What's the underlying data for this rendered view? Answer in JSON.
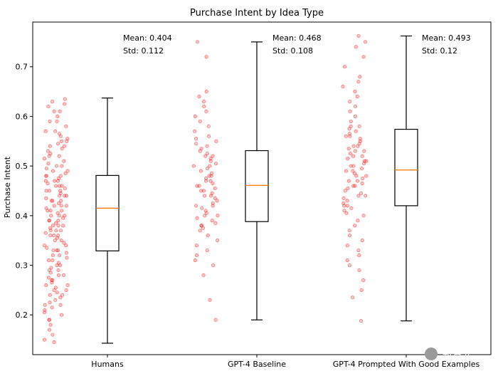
{
  "chart_data": {
    "type": "box",
    "title": "Purchase Intent by Idea Type",
    "xlabel": "",
    "ylabel": "Purchase Intent",
    "ylim": [
      0.12,
      0.79
    ],
    "yticks": [
      0.2,
      0.3,
      0.4,
      0.5,
      0.6,
      0.7
    ],
    "ytick_labels": [
      "0.2",
      "0.3",
      "0.4",
      "0.5",
      "0.6",
      "0.7"
    ],
    "grid": false,
    "categories": [
      "Humans",
      "GPT-4 Baseline",
      "GPT-4 Prompted With Good Examples"
    ],
    "series": [
      {
        "name": "Humans",
        "whisker_low": 0.143,
        "q1": 0.329,
        "median": 0.415,
        "q3": 0.481,
        "whisker_high": 0.637,
        "mean_label": "Mean: 0.404",
        "std_label": "Std: 0.112",
        "points": [
          0.145,
          0.15,
          0.16,
          0.17,
          0.18,
          0.19,
          0.2,
          0.205,
          0.21,
          0.215,
          0.22,
          0.225,
          0.23,
          0.235,
          0.24,
          0.245,
          0.25,
          0.255,
          0.26,
          0.265,
          0.27,
          0.275,
          0.28,
          0.285,
          0.29,
          0.295,
          0.3,
          0.305,
          0.31,
          0.315,
          0.32,
          0.325,
          0.33,
          0.335,
          0.34,
          0.345,
          0.35,
          0.355,
          0.36,
          0.365,
          0.37,
          0.375,
          0.38,
          0.385,
          0.39,
          0.395,
          0.4,
          0.405,
          0.41,
          0.415,
          0.42,
          0.425,
          0.43,
          0.435,
          0.44,
          0.445,
          0.45,
          0.455,
          0.46,
          0.465,
          0.47,
          0.475,
          0.48,
          0.485,
          0.49,
          0.495,
          0.5,
          0.505,
          0.51,
          0.515,
          0.52,
          0.525,
          0.53,
          0.535,
          0.54,
          0.545,
          0.55,
          0.555,
          0.56,
          0.565,
          0.57,
          0.58,
          0.59,
          0.6,
          0.61,
          0.62,
          0.625,
          0.63,
          0.635,
          0.31,
          0.33,
          0.35,
          0.37,
          0.39,
          0.41,
          0.43,
          0.45,
          0.47,
          0.49,
          0.4,
          0.42,
          0.44,
          0.46,
          0.48,
          0.38,
          0.36,
          0.34,
          0.32,
          0.3,
          0.28,
          0.26,
          0.24,
          0.41,
          0.43,
          0.45,
          0.47,
          0.39,
          0.37,
          0.5,
          0.52,
          0.54,
          0.42,
          0.44,
          0.46,
          0.48,
          0.4,
          0.38,
          0.36,
          0.33,
          0.29,
          0.27,
          0.25,
          0.22,
          0.19,
          0.55,
          0.57,
          0.59,
          0.61
        ]
      },
      {
        "name": "GPT-4 Baseline",
        "whisker_low": 0.19,
        "q1": 0.388,
        "median": 0.461,
        "q3": 0.531,
        "whisker_high": 0.75,
        "mean_label": "Mean: 0.468",
        "std_label": "Std: 0.108",
        "points": [
          0.19,
          0.23,
          0.28,
          0.3,
          0.31,
          0.32,
          0.33,
          0.34,
          0.35,
          0.36,
          0.37,
          0.375,
          0.38,
          0.385,
          0.39,
          0.395,
          0.4,
          0.405,
          0.41,
          0.415,
          0.42,
          0.425,
          0.43,
          0.435,
          0.44,
          0.445,
          0.45,
          0.455,
          0.46,
          0.465,
          0.47,
          0.475,
          0.48,
          0.485,
          0.49,
          0.495,
          0.5,
          0.505,
          0.51,
          0.515,
          0.52,
          0.525,
          0.53,
          0.535,
          0.54,
          0.545,
          0.55,
          0.555,
          0.56,
          0.57,
          0.58,
          0.59,
          0.6,
          0.61,
          0.62,
          0.63,
          0.64,
          0.65,
          0.72,
          0.75,
          0.4,
          0.42,
          0.44,
          0.46,
          0.48,
          0.38,
          0.5,
          0.52,
          0.45,
          0.47
        ]
      },
      {
        "name": "GPT-4 Prompted With Good Examples",
        "whisker_low": 0.188,
        "q1": 0.42,
        "median": 0.492,
        "q3": 0.574,
        "whisker_high": 0.762,
        "mean_label": "Mean: 0.493",
        "std_label": "Std: 0.12",
        "points": [
          0.188,
          0.235,
          0.25,
          0.27,
          0.29,
          0.3,
          0.31,
          0.32,
          0.33,
          0.34,
          0.35,
          0.36,
          0.37,
          0.38,
          0.39,
          0.4,
          0.405,
          0.41,
          0.415,
          0.42,
          0.425,
          0.43,
          0.435,
          0.44,
          0.445,
          0.45,
          0.455,
          0.46,
          0.465,
          0.47,
          0.475,
          0.48,
          0.485,
          0.49,
          0.495,
          0.5,
          0.505,
          0.51,
          0.515,
          0.52,
          0.525,
          0.53,
          0.535,
          0.54,
          0.545,
          0.55,
          0.555,
          0.56,
          0.565,
          0.57,
          0.575,
          0.58,
          0.59,
          0.6,
          0.61,
          0.62,
          0.63,
          0.64,
          0.65,
          0.66,
          0.67,
          0.68,
          0.7,
          0.72,
          0.74,
          0.75,
          0.762,
          0.46,
          0.48,
          0.5,
          0.52,
          0.54,
          0.44,
          0.42,
          0.56,
          0.58,
          0.47,
          0.49,
          0.51,
          0.53
        ]
      }
    ],
    "colors": {
      "points": "#ff0000",
      "box": "#000000",
      "median": "#ff7f0e"
    }
  },
  "watermark": "新智元"
}
